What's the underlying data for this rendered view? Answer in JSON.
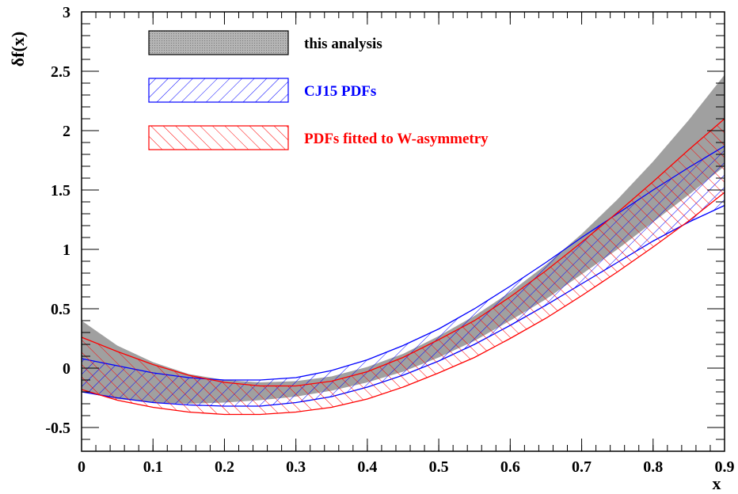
{
  "chart_data": {
    "type": "area",
    "xlabel": "x",
    "ylabel": "δf(x)",
    "xlim": [
      0,
      0.9
    ],
    "ylim": [
      -0.7,
      3.0
    ],
    "x_ticks": [
      "0",
      "0.1",
      "0.2",
      "0.3",
      "0.4",
      "0.5",
      "0.6",
      "0.7",
      "0.8",
      "0.9"
    ],
    "y_ticks": [
      "-0.5",
      "0",
      "0.5",
      "1",
      "1.5",
      "2",
      "2.5",
      "3"
    ],
    "grid": false,
    "legend_position": "top-left",
    "series": [
      {
        "name": "this analysis",
        "color": "#a0a0a0",
        "fill": "solid-gray",
        "x": [
          0,
          0.05,
          0.1,
          0.15,
          0.2,
          0.25,
          0.3,
          0.35,
          0.4,
          0.45,
          0.5,
          0.55,
          0.6,
          0.65,
          0.7,
          0.75,
          0.8,
          0.85,
          0.9
        ],
        "upper": [
          0.4,
          0.19,
          0.05,
          -0.05,
          -0.1,
          -0.12,
          -0.11,
          -0.07,
          0.01,
          0.12,
          0.27,
          0.44,
          0.64,
          0.87,
          1.13,
          1.42,
          1.74,
          2.09,
          2.47
        ],
        "lower": [
          -0.2,
          -0.26,
          -0.29,
          -0.3,
          -0.29,
          -0.27,
          -0.24,
          -0.19,
          -0.12,
          -0.03,
          0.09,
          0.23,
          0.4,
          0.58,
          0.79,
          1.0,
          1.23,
          1.46,
          1.7
        ]
      },
      {
        "name": "CJ15 PDFs",
        "color": "#0000ff",
        "fill": "hatch-diagonal-up",
        "x": [
          0,
          0.05,
          0.1,
          0.15,
          0.2,
          0.25,
          0.3,
          0.35,
          0.4,
          0.45,
          0.5,
          0.55,
          0.6,
          0.65,
          0.7,
          0.75,
          0.8,
          0.85,
          0.9
        ],
        "upper": [
          0.08,
          0.02,
          -0.04,
          -0.08,
          -0.1,
          -0.1,
          -0.08,
          -0.02,
          0.07,
          0.19,
          0.33,
          0.5,
          0.69,
          0.89,
          1.1,
          1.3,
          1.5,
          1.69,
          1.87
        ],
        "lower": [
          -0.2,
          -0.25,
          -0.29,
          -0.31,
          -0.32,
          -0.32,
          -0.29,
          -0.24,
          -0.16,
          -0.06,
          0.06,
          0.2,
          0.36,
          0.53,
          0.71,
          0.89,
          1.07,
          1.23,
          1.37
        ]
      },
      {
        "name": "PDFs fitted to W-asymmetry",
        "color": "#ff0000",
        "fill": "hatch-diagonal-down",
        "x": [
          0,
          0.05,
          0.1,
          0.15,
          0.2,
          0.25,
          0.3,
          0.35,
          0.4,
          0.45,
          0.5,
          0.55,
          0.6,
          0.65,
          0.7,
          0.75,
          0.8,
          0.85,
          0.9
        ],
        "upper": [
          0.26,
          0.14,
          0.03,
          -0.06,
          -0.12,
          -0.15,
          -0.15,
          -0.11,
          -0.03,
          0.09,
          0.24,
          0.4,
          0.6,
          0.82,
          1.06,
          1.31,
          1.57,
          1.84,
          2.1
        ],
        "lower": [
          -0.18,
          -0.27,
          -0.33,
          -0.37,
          -0.39,
          -0.39,
          -0.37,
          -0.33,
          -0.26,
          -0.16,
          -0.04,
          0.09,
          0.25,
          0.42,
          0.61,
          0.81,
          1.02,
          1.24,
          1.48
        ]
      }
    ]
  }
}
